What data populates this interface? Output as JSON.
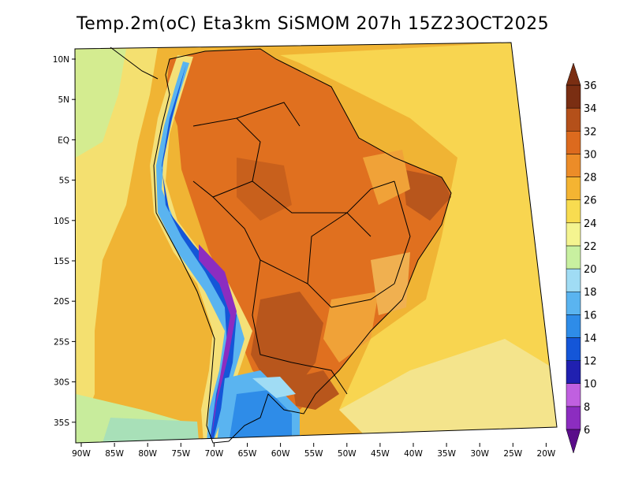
{
  "title": "Temp.2m(oC) Eta3km SiSMOM 207h 15Z23OCT2025",
  "chart_data": {
    "type": "heatmap",
    "variable": "Temp.2m(oC)",
    "model": "Eta3km SiSMOM",
    "forecast_hour": "207h",
    "valid_time": "15Z23OCT2025",
    "lon_range": [
      -91,
      -20
    ],
    "lat_range": [
      -38,
      11.5
    ],
    "x_ticks": [
      "90W",
      "85W",
      "80W",
      "75W",
      "70W",
      "65W",
      "60W",
      "55W",
      "50W",
      "45W",
      "40W",
      "35W",
      "30W",
      "25W",
      "20W"
    ],
    "y_ticks": [
      "10N",
      "5N",
      "EQ",
      "5S",
      "10S",
      "15S",
      "20S",
      "25S",
      "30S",
      "35S"
    ],
    "colorbar": {
      "levels": [
        6,
        8,
        10,
        12,
        14,
        16,
        18,
        20,
        22,
        24,
        26,
        28,
        30,
        32,
        34,
        36
      ],
      "labels": [
        "6",
        "8",
        "10",
        "12",
        "14",
        "16",
        "18",
        "20",
        "22",
        "24",
        "26",
        "28",
        "30",
        "32",
        "34",
        "36"
      ],
      "colors": [
        "#5a0d8a",
        "#8c2dc0",
        "#c060e0",
        "#2020b0",
        "#1456d8",
        "#2e8ce8",
        "#5ab4f0",
        "#a0dcf4",
        "#c8f0a0",
        "#f4f490",
        "#f8dc50",
        "#f4b432",
        "#ec8c28",
        "#dc6a1e",
        "#b4501a",
        "#7a2e12"
      ],
      "extend": "both"
    },
    "regions": {
      "ocean_pacific_far": "26-28",
      "ocean_pacific_coast": "22-24",
      "ocean_atlantic": "26-28",
      "amazon_basin": "30-32",
      "central_west": "32-34",
      "andes_highlands": "6-16",
      "patagonia": "18-24",
      "northeast_interior": "32-34"
    }
  }
}
